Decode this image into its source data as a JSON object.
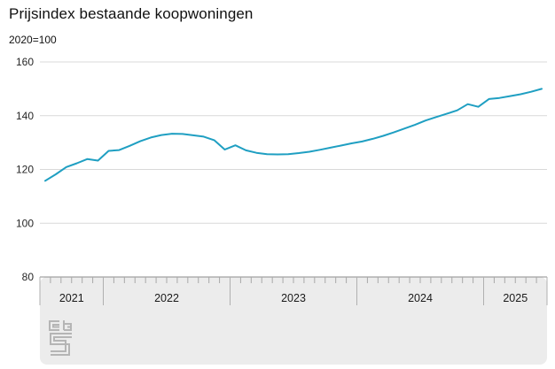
{
  "header": {
    "title": "Prijsindex bestaande koopwoningen",
    "subtitle": "2020=100"
  },
  "chart_data": {
    "type": "line",
    "title": "Prijsindex bestaande koopwoningen",
    "subtitle": "2020=100",
    "ylabel": "",
    "xlabel": "",
    "ylim": [
      80,
      160
    ],
    "yticks": [
      80,
      100,
      120,
      140,
      160
    ],
    "grid": "horizontal",
    "legend": "none",
    "line_color": "#1f9fc2",
    "year_sections": [
      {
        "label": "2021",
        "months": 6
      },
      {
        "label": "2022",
        "months": 12
      },
      {
        "label": "2023",
        "months": 12
      },
      {
        "label": "2024",
        "months": 12
      },
      {
        "label": "2025",
        "months": 6
      }
    ],
    "months": [
      "2021-07",
      "2021-08",
      "2021-09",
      "2021-10",
      "2021-11",
      "2021-12",
      "2022-01",
      "2022-02",
      "2022-03",
      "2022-04",
      "2022-05",
      "2022-06",
      "2022-07",
      "2022-08",
      "2022-09",
      "2022-10",
      "2022-11",
      "2022-12",
      "2023-01",
      "2023-02",
      "2023-03",
      "2023-04",
      "2023-05",
      "2023-06",
      "2023-07",
      "2023-08",
      "2023-09",
      "2023-10",
      "2023-11",
      "2023-12",
      "2024-01",
      "2024-02",
      "2024-03",
      "2024-04",
      "2024-05",
      "2024-06",
      "2024-07",
      "2024-08",
      "2024-09",
      "2024-10",
      "2024-11",
      "2024-12",
      "2025-01",
      "2025-02",
      "2025-03",
      "2025-04",
      "2025-05",
      "2025-06"
    ],
    "series": [
      {
        "name": "Prijsindex bestaande koopwoningen",
        "values": [
          115.8,
          118.2,
          120.9,
          122.3,
          123.9,
          123.3,
          126.9,
          127.2,
          128.8,
          130.5,
          131.9,
          132.8,
          133.3,
          133.2,
          132.7,
          132.2,
          130.9,
          127.4,
          129.0,
          127.1,
          126.2,
          125.7,
          125.6,
          125.7,
          126.1,
          126.6,
          127.3,
          128.1,
          128.9,
          129.7,
          130.4,
          131.4,
          132.5,
          133.8,
          135.2,
          136.6,
          138.2,
          139.5,
          140.7,
          142.0,
          144.3,
          143.3,
          146.2,
          146.6,
          147.3,
          148.0,
          148.9,
          150.0
        ]
      }
    ]
  },
  "footer": {
    "logo_icon": "cbs-logo"
  }
}
